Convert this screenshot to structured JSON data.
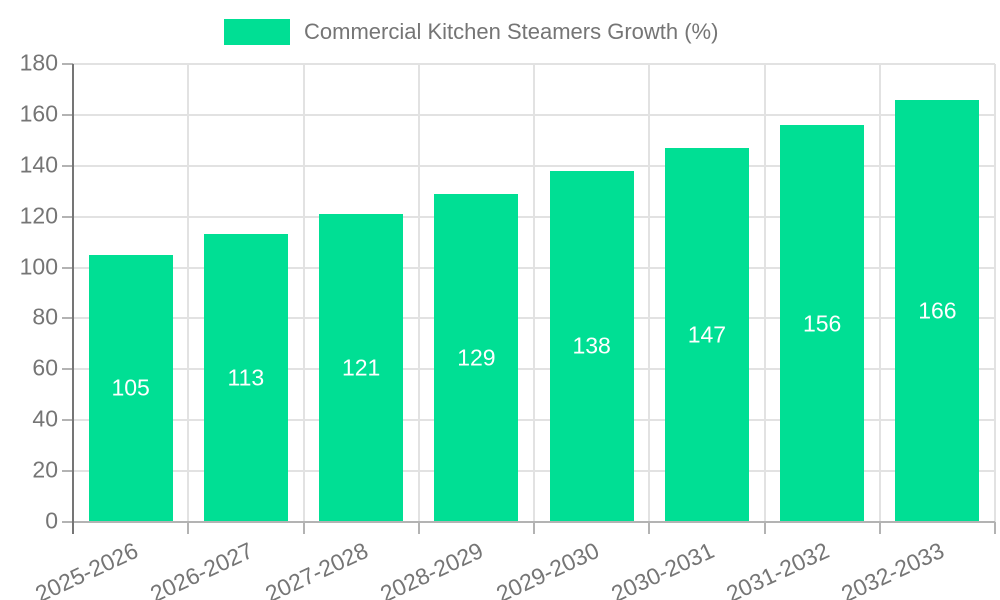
{
  "chart_data": {
    "type": "bar",
    "title": "Commercial Kitchen Steamers Growth (%)",
    "xlabel": "",
    "ylabel": "",
    "categories": [
      "2025-2026",
      "2026-2027",
      "2027-2028",
      "2028-2029",
      "2029-2030",
      "2030-2031",
      "2031-2032",
      "2032-2033"
    ],
    "values": [
      105,
      113,
      121,
      129,
      138,
      147,
      156,
      166
    ],
    "ylim": [
      0,
      180
    ],
    "yticks": [
      0,
      20,
      40,
      60,
      80,
      100,
      120,
      140,
      160,
      180
    ],
    "grid": true,
    "legend_position": "top",
    "x_tick_rotation_deg": -25,
    "bar_labels_inside": true,
    "colors": {
      "bar": "#00DF94",
      "bar_label": "#ffffff",
      "axis_text": "#757575",
      "legend_text": "#757575",
      "grid_line": "#e2e2e2",
      "x_axis_line": "#b3b3b3",
      "y_axis_line": "#757575",
      "tick": "#b3b3b3",
      "background": "#ffffff"
    }
  }
}
